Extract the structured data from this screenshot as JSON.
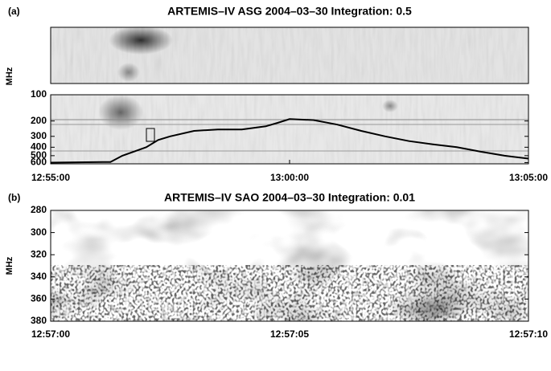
{
  "chart_data": [
    {
      "type": "spectrogram",
      "label": "(a)",
      "title": "ARTEMIS–IV  ASG 2004–03–30   Integration: 0.5",
      "ylabel": "MHz",
      "log": true,
      "ylim": [
        620,
        100
      ],
      "yticks": [
        100,
        200,
        300,
        400,
        500,
        600
      ],
      "xlim": [
        "12:55:00",
        "13:05:00"
      ],
      "xticks": [
        "12:55:00",
        "13:00:00",
        "13:05:00"
      ],
      "line": {
        "color": "#000000",
        "x": [
          "12:55:00",
          "12:56:15",
          "12:56:30",
          "12:57:00",
          "12:57:15",
          "12:57:30",
          "12:58:00",
          "12:58:30",
          "12:59:00",
          "12:59:30",
          "12:59:45",
          "13:00:00",
          "13:00:30",
          "13:01:00",
          "13:01:30",
          "13:02:00",
          "13:02:30",
          "13:03:00",
          "13:03:30",
          "13:04:00",
          "13:04:30",
          "13:05:00"
        ],
        "values": [
          600,
          590,
          500,
          400,
          330,
          300,
          260,
          250,
          250,
          230,
          210,
          190,
          195,
          220,
          260,
          300,
          340,
          370,
          400,
          450,
          500,
          540
        ]
      }
    },
    {
      "type": "spectrogram",
      "label": "(b)",
      "title": "ARTEMIS–IV  SAO 2004–03–30   Integration: 0.01",
      "ylabel": "MHz",
      "log": false,
      "ylim": [
        380,
        280
      ],
      "yticks": [
        280,
        300,
        320,
        340,
        360,
        380
      ],
      "xlim": [
        "12:57:00",
        "12:57:10"
      ],
      "xticks": [
        "12:57:00",
        "12:57:05",
        "12:57:10"
      ]
    }
  ]
}
